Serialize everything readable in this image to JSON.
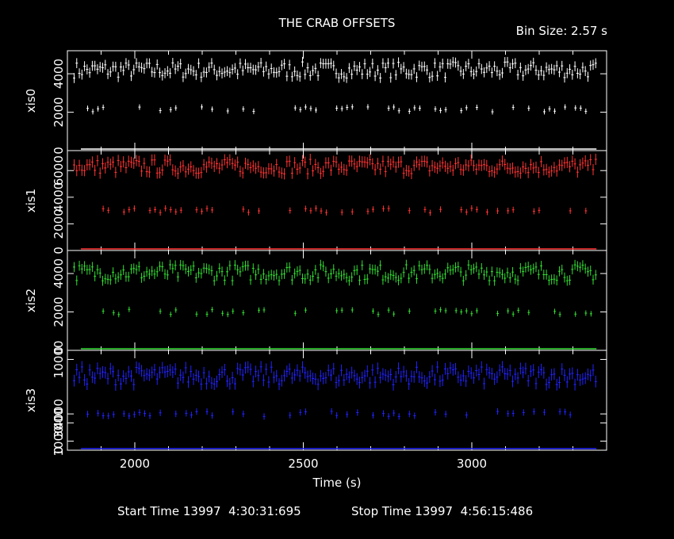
{
  "title": "THE CRAB OFFSETS",
  "bin_size_label": "Bin Size: 2.57 s",
  "start_time": "Start Time 13997  4:30:31:695",
  "stop_time": "Stop Time 13997  4:56:15:486",
  "colors": {
    "background": "#000000",
    "axes": "#ffffff",
    "xis0": "#ffffff",
    "xis1": "#ff3333",
    "xis2": "#33dd33",
    "xis3": "#2222ff"
  },
  "chart_data": {
    "type": "scatter",
    "xlabel": "Time (s)",
    "xlim": [
      1800,
      3400
    ],
    "x_ticks": [
      2000,
      2500,
      3000
    ],
    "x_tick_labels": [
      "2000",
      "2500",
      "3000"
    ],
    "panels": [
      {
        "name": "xis0",
        "ylabel": "xis0",
        "color": "#ffffff",
        "ylim": [
          0,
          5200
        ],
        "y_ticks": [
          0,
          2000,
          4000
        ],
        "y_tick_labels": [
          "0",
          "2000",
          "4000"
        ],
        "high_level": 4200,
        "high_spread": 420,
        "low_level": 2150,
        "low_spread": 130,
        "baseline": 0,
        "error": 260
      },
      {
        "name": "xis1",
        "ylabel": "xis1",
        "color": "#ff3333",
        "ylim": [
          0,
          7500
        ],
        "y_ticks": [
          0,
          2000,
          4000,
          6000
        ],
        "y_tick_labels": [
          "0",
          "2000",
          "4000",
          "6000"
        ],
        "high_level": 6300,
        "high_spread": 550,
        "low_level": 3000,
        "low_spread": 170,
        "baseline": 0,
        "error": 420
      },
      {
        "name": "xis2",
        "ylabel": "xis2",
        "color": "#33dd33",
        "ylim": [
          0,
          5200
        ],
        "y_ticks": [
          0,
          2000,
          4000
        ],
        "y_tick_labels": [
          "0",
          "2000",
          "4000"
        ],
        "high_level": 4050,
        "high_spread": 430,
        "low_level": 2000,
        "low_spread": 140,
        "baseline": 0,
        "error": 260
      },
      {
        "name": "xis3",
        "ylabel": "xis3",
        "color": "#2222ff",
        "ylim": [
          0,
          11000
        ],
        "y_ticks": [
          0,
          1000,
          3000,
          4000,
          10000
        ],
        "y_tick_labels": [
          "0",
          "1000",
          "3000",
          "4000",
          "10000"
        ],
        "high_level": 8200,
        "high_spread": 1000,
        "low_level": 4000,
        "low_spread": 280,
        "baseline": 0,
        "error": 650
      }
    ]
  }
}
